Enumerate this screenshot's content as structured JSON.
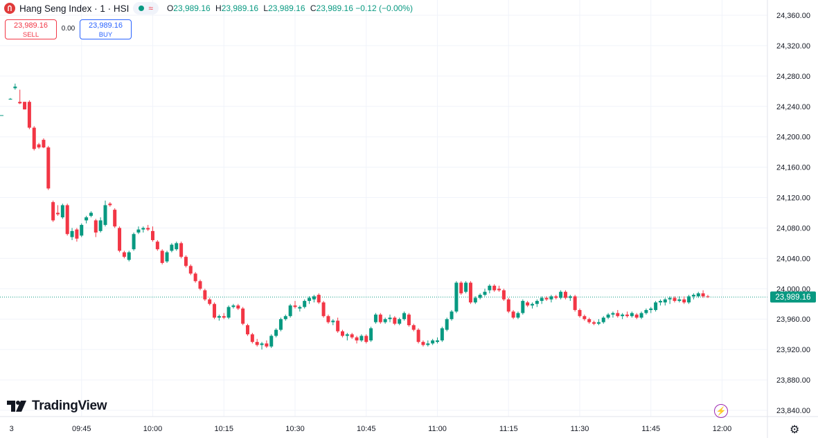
{
  "header": {
    "title": "Hang Seng Index · 1 · HSI",
    "wave_icon": "≈",
    "ohlc": [
      {
        "key": "O",
        "value": "23,989.16"
      },
      {
        "key": "H",
        "value": "23,989.16"
      },
      {
        "key": "L",
        "value": "23,989.16"
      },
      {
        "key": "C",
        "value": "23,989.16"
      }
    ],
    "change": "−0.12 (−0.00%)"
  },
  "trade": {
    "sell_price": "23,989.16",
    "sell_label": "SELL",
    "spread": "0.00",
    "buy_price": "23,989.16",
    "buy_label": "BUY"
  },
  "watermark": "TradingView",
  "icons": [
    "logo-icon",
    "wave-icon",
    "bolt-icon",
    "gear-icon",
    "tradingview-logo-icon"
  ],
  "colors": {
    "up": "#089981",
    "down": "#f23645",
    "grid": "#f0f3fa",
    "price_badge": "#089981"
  },
  "chart_data": {
    "type": "candlestick",
    "symbol": "HSI",
    "interval": "1",
    "last_price": 23989.16,
    "last_price_label": "23,989.16",
    "y_ticks": [
      "23,840.00",
      "23,880.00",
      "23,920.00",
      "23,960.00",
      "24,000.00",
      "24,040.00",
      "24,080.00",
      "24,120.00",
      "24,160.00",
      "24,200.00",
      "24,240.00",
      "24,280.00",
      "24,320.00",
      "24,360.00"
    ],
    "ylim": [
      23822,
      24378
    ],
    "x_ticks": [
      "3",
      "09:45",
      "10:00",
      "10:15",
      "10:30",
      "10:45",
      "11:00",
      "11:15",
      "11:30",
      "11:45",
      "12:00"
    ],
    "x_tick_index": [
      -0.2,
      15,
      30,
      45,
      60,
      75,
      90,
      105,
      120,
      135,
      150
    ],
    "grid": true,
    "candles": [
      {
        "o": 24249,
        "h": 24251,
        "l": 24249,
        "c": 24250
      },
      {
        "o": 24264,
        "h": 24270,
        "l": 24262,
        "c": 24266
      },
      {
        "o": 24246,
        "h": 24262,
        "l": 24243,
        "c": 24244
      },
      {
        "o": 24246,
        "h": 24246,
        "l": 24236,
        "c": 24236
      },
      {
        "o": 24246,
        "h": 24248,
        "l": 24210,
        "c": 24212
      },
      {
        "o": 24212,
        "h": 24214,
        "l": 24182,
        "c": 24184
      },
      {
        "o": 24190,
        "h": 24192,
        "l": 24184,
        "c": 24186
      },
      {
        "o": 24196,
        "h": 24198,
        "l": 24185,
        "c": 24186
      },
      {
        "o": 24186,
        "h": 24188,
        "l": 24130,
        "c": 24132
      },
      {
        "o": 24114,
        "h": 24116,
        "l": 24088,
        "c": 24090
      },
      {
        "o": 24100,
        "h": 24110,
        "l": 24096,
        "c": 24098
      },
      {
        "o": 24094,
        "h": 24112,
        "l": 24092,
        "c": 24110
      },
      {
        "o": 24110,
        "h": 24112,
        "l": 24070,
        "c": 24072
      },
      {
        "o": 24068,
        "h": 24080,
        "l": 24064,
        "c": 24076
      },
      {
        "o": 24078,
        "h": 24080,
        "l": 24062,
        "c": 24066
      },
      {
        "o": 24070,
        "h": 24086,
        "l": 24068,
        "c": 24084
      },
      {
        "o": 24090,
        "h": 24096,
        "l": 24086,
        "c": 24094
      },
      {
        "o": 24096,
        "h": 24102,
        "l": 24094,
        "c": 24100
      },
      {
        "o": 24090,
        "h": 24092,
        "l": 24068,
        "c": 24074
      },
      {
        "o": 24076,
        "h": 24094,
        "l": 24074,
        "c": 24090
      },
      {
        "o": 24084,
        "h": 24116,
        "l": 24082,
        "c": 24110
      },
      {
        "o": 24112,
        "h": 24114,
        "l": 24108,
        "c": 24110
      },
      {
        "o": 24104,
        "h": 24106,
        "l": 24080,
        "c": 24082
      },
      {
        "o": 24080,
        "h": 24082,
        "l": 24048,
        "c": 24050
      },
      {
        "o": 24048,
        "h": 24050,
        "l": 24040,
        "c": 24042
      },
      {
        "o": 24038,
        "h": 24050,
        "l": 24036,
        "c": 24048
      },
      {
        "o": 24052,
        "h": 24074,
        "l": 24050,
        "c": 24072
      },
      {
        "o": 24074,
        "h": 24082,
        "l": 24072,
        "c": 24078
      },
      {
        "o": 24078,
        "h": 24082,
        "l": 24074,
        "c": 24080
      },
      {
        "o": 24080,
        "h": 24084,
        "l": 24076,
        "c": 24078
      },
      {
        "o": 24076,
        "h": 24082,
        "l": 24062,
        "c": 24064
      },
      {
        "o": 24062,
        "h": 24064,
        "l": 24050,
        "c": 24052
      },
      {
        "o": 24050,
        "h": 24052,
        "l": 24032,
        "c": 24034
      },
      {
        "o": 24036,
        "h": 24050,
        "l": 24034,
        "c": 24048
      },
      {
        "o": 24050,
        "h": 24060,
        "l": 24048,
        "c": 24058
      },
      {
        "o": 24052,
        "h": 24062,
        "l": 24050,
        "c": 24060
      },
      {
        "o": 24060,
        "h": 24062,
        "l": 24040,
        "c": 24042
      },
      {
        "o": 24042,
        "h": 24044,
        "l": 24028,
        "c": 24030
      },
      {
        "o": 24030,
        "h": 24032,
        "l": 24018,
        "c": 24020
      },
      {
        "o": 24020,
        "h": 24022,
        "l": 24008,
        "c": 24010
      },
      {
        "o": 24010,
        "h": 24012,
        "l": 23998,
        "c": 24000
      },
      {
        "o": 23998,
        "h": 24000,
        "l": 23984,
        "c": 23986
      },
      {
        "o": 23986,
        "h": 23988,
        "l": 23978,
        "c": 23980
      },
      {
        "o": 23980,
        "h": 23982,
        "l": 23960,
        "c": 23962
      },
      {
        "o": 23962,
        "h": 23966,
        "l": 23958,
        "c": 23964
      },
      {
        "o": 23964,
        "h": 23968,
        "l": 23960,
        "c": 23962
      },
      {
        "o": 23962,
        "h": 23978,
        "l": 23960,
        "c": 23976
      },
      {
        "o": 23976,
        "h": 23980,
        "l": 23974,
        "c": 23978
      },
      {
        "o": 23978,
        "h": 23980,
        "l": 23972,
        "c": 23974
      },
      {
        "o": 23974,
        "h": 23976,
        "l": 23952,
        "c": 23954
      },
      {
        "o": 23952,
        "h": 23954,
        "l": 23938,
        "c": 23940
      },
      {
        "o": 23940,
        "h": 23942,
        "l": 23928,
        "c": 23930
      },
      {
        "o": 23930,
        "h": 23934,
        "l": 23924,
        "c": 23926
      },
      {
        "o": 23926,
        "h": 23930,
        "l": 23920,
        "c": 23928
      },
      {
        "o": 23928,
        "h": 23932,
        "l": 23922,
        "c": 23924
      },
      {
        "o": 23924,
        "h": 23940,
        "l": 23922,
        "c": 23938
      },
      {
        "o": 23938,
        "h": 23948,
        "l": 23936,
        "c": 23946
      },
      {
        "o": 23946,
        "h": 23962,
        "l": 23944,
        "c": 23960
      },
      {
        "o": 23960,
        "h": 23966,
        "l": 23958,
        "c": 23964
      },
      {
        "o": 23964,
        "h": 23980,
        "l": 23962,
        "c": 23978
      },
      {
        "o": 23978,
        "h": 23984,
        "l": 23974,
        "c": 23976
      },
      {
        "o": 23974,
        "h": 23978,
        "l": 23970,
        "c": 23976
      },
      {
        "o": 23976,
        "h": 23986,
        "l": 23974,
        "c": 23984
      },
      {
        "o": 23984,
        "h": 23990,
        "l": 23980,
        "c": 23988
      },
      {
        "o": 23986,
        "h": 23992,
        "l": 23982,
        "c": 23990
      },
      {
        "o": 23992,
        "h": 23994,
        "l": 23980,
        "c": 23982
      },
      {
        "o": 23982,
        "h": 23984,
        "l": 23962,
        "c": 23964
      },
      {
        "o": 23964,
        "h": 23966,
        "l": 23954,
        "c": 23956
      },
      {
        "o": 23956,
        "h": 23960,
        "l": 23952,
        "c": 23958
      },
      {
        "o": 23958,
        "h": 23962,
        "l": 23942,
        "c": 23944
      },
      {
        "o": 23944,
        "h": 23946,
        "l": 23936,
        "c": 23938
      },
      {
        "o": 23938,
        "h": 23942,
        "l": 23932,
        "c": 23940
      },
      {
        "o": 23940,
        "h": 23942,
        "l": 23934,
        "c": 23936
      },
      {
        "o": 23936,
        "h": 23938,
        "l": 23928,
        "c": 23932
      },
      {
        "o": 23932,
        "h": 23940,
        "l": 23930,
        "c": 23938
      },
      {
        "o": 23938,
        "h": 23940,
        "l": 23928,
        "c": 23930
      },
      {
        "o": 23932,
        "h": 23950,
        "l": 23930,
        "c": 23948
      },
      {
        "o": 23956,
        "h": 23968,
        "l": 23954,
        "c": 23966
      },
      {
        "o": 23966,
        "h": 23968,
        "l": 23954,
        "c": 23956
      },
      {
        "o": 23956,
        "h": 23962,
        "l": 23954,
        "c": 23960
      },
      {
        "o": 23960,
        "h": 23966,
        "l": 23956,
        "c": 23962
      },
      {
        "o": 23962,
        "h": 23964,
        "l": 23952,
        "c": 23954
      },
      {
        "o": 23954,
        "h": 23962,
        "l": 23952,
        "c": 23960
      },
      {
        "o": 23960,
        "h": 23970,
        "l": 23958,
        "c": 23968
      },
      {
        "o": 23966,
        "h": 23968,
        "l": 23950,
        "c": 23952
      },
      {
        "o": 23952,
        "h": 23954,
        "l": 23944,
        "c": 23946
      },
      {
        "o": 23946,
        "h": 23948,
        "l": 23928,
        "c": 23930
      },
      {
        "o": 23930,
        "h": 23932,
        "l": 23924,
        "c": 23926
      },
      {
        "o": 23926,
        "h": 23932,
        "l": 23924,
        "c": 23928
      },
      {
        "o": 23928,
        "h": 23934,
        "l": 23926,
        "c": 23932
      },
      {
        "o": 23930,
        "h": 23936,
        "l": 23928,
        "c": 23932
      },
      {
        "o": 23932,
        "h": 23950,
        "l": 23930,
        "c": 23948
      },
      {
        "o": 23946,
        "h": 23962,
        "l": 23944,
        "c": 23960
      },
      {
        "o": 23960,
        "h": 23972,
        "l": 23958,
        "c": 23970
      },
      {
        "o": 23970,
        "h": 24010,
        "l": 23968,
        "c": 24008
      },
      {
        "o": 24008,
        "h": 24010,
        "l": 23992,
        "c": 23994
      },
      {
        "o": 23996,
        "h": 24010,
        "l": 23994,
        "c": 24008
      },
      {
        "o": 24008,
        "h": 24010,
        "l": 23980,
        "c": 23982
      },
      {
        "o": 23982,
        "h": 23990,
        "l": 23980,
        "c": 23988
      },
      {
        "o": 23988,
        "h": 23994,
        "l": 23986,
        "c": 23992
      },
      {
        "o": 23992,
        "h": 24000,
        "l": 23990,
        "c": 23996
      },
      {
        "o": 23998,
        "h": 24006,
        "l": 23994,
        "c": 24004
      },
      {
        "o": 24004,
        "h": 24006,
        "l": 23996,
        "c": 23998
      },
      {
        "o": 24000,
        "h": 24004,
        "l": 23996,
        "c": 23998
      },
      {
        "o": 23998,
        "h": 24000,
        "l": 23984,
        "c": 23986
      },
      {
        "o": 23986,
        "h": 23988,
        "l": 23968,
        "c": 23970
      },
      {
        "o": 23970,
        "h": 23972,
        "l": 23960,
        "c": 23962
      },
      {
        "o": 23962,
        "h": 23970,
        "l": 23960,
        "c": 23968
      },
      {
        "o": 23968,
        "h": 23986,
        "l": 23966,
        "c": 23984
      },
      {
        "o": 23982,
        "h": 23984,
        "l": 23976,
        "c": 23978
      },
      {
        "o": 23978,
        "h": 23982,
        "l": 23974,
        "c": 23980
      },
      {
        "o": 23980,
        "h": 23986,
        "l": 23976,
        "c": 23984
      },
      {
        "o": 23984,
        "h": 23990,
        "l": 23980,
        "c": 23988
      },
      {
        "o": 23988,
        "h": 23990,
        "l": 23984,
        "c": 23986
      },
      {
        "o": 23986,
        "h": 23992,
        "l": 23982,
        "c": 23990
      },
      {
        "o": 23990,
        "h": 23992,
        "l": 23986,
        "c": 23988
      },
      {
        "o": 23988,
        "h": 23998,
        "l": 23986,
        "c": 23996
      },
      {
        "o": 23996,
        "h": 23998,
        "l": 23986,
        "c": 23988
      },
      {
        "o": 23988,
        "h": 23992,
        "l": 23984,
        "c": 23990
      },
      {
        "o": 23990,
        "h": 23992,
        "l": 23970,
        "c": 23972
      },
      {
        "o": 23972,
        "h": 23974,
        "l": 23962,
        "c": 23964
      },
      {
        "o": 23964,
        "h": 23966,
        "l": 23958,
        "c": 23960
      },
      {
        "o": 23960,
        "h": 23962,
        "l": 23954,
        "c": 23956
      },
      {
        "o": 23956,
        "h": 23958,
        "l": 23952,
        "c": 23954
      },
      {
        "o": 23954,
        "h": 23960,
        "l": 23952,
        "c": 23956
      },
      {
        "o": 23956,
        "h": 23964,
        "l": 23954,
        "c": 23962
      },
      {
        "o": 23962,
        "h": 23968,
        "l": 23960,
        "c": 23966
      },
      {
        "o": 23966,
        "h": 23970,
        "l": 23962,
        "c": 23968
      },
      {
        "o": 23968,
        "h": 23972,
        "l": 23962,
        "c": 23964
      },
      {
        "o": 23964,
        "h": 23968,
        "l": 23960,
        "c": 23966
      },
      {
        "o": 23966,
        "h": 23970,
        "l": 23962,
        "c": 23964
      },
      {
        "o": 23964,
        "h": 23970,
        "l": 23962,
        "c": 23968
      },
      {
        "o": 23966,
        "h": 23968,
        "l": 23960,
        "c": 23962
      },
      {
        "o": 23962,
        "h": 23970,
        "l": 23960,
        "c": 23968
      },
      {
        "o": 23968,
        "h": 23974,
        "l": 23966,
        "c": 23972
      },
      {
        "o": 23972,
        "h": 23976,
        "l": 23968,
        "c": 23974
      },
      {
        "o": 23972,
        "h": 23984,
        "l": 23970,
        "c": 23982
      },
      {
        "o": 23982,
        "h": 23986,
        "l": 23978,
        "c": 23984
      },
      {
        "o": 23982,
        "h": 23988,
        "l": 23978,
        "c": 23986
      },
      {
        "o": 23986,
        "h": 23990,
        "l": 23980,
        "c": 23988
      },
      {
        "o": 23988,
        "h": 23990,
        "l": 23982,
        "c": 23984
      },
      {
        "o": 23984,
        "h": 23990,
        "l": 23982,
        "c": 23986
      },
      {
        "o": 23986,
        "h": 23990,
        "l": 23980,
        "c": 23982
      },
      {
        "o": 23982,
        "h": 23992,
        "l": 23980,
        "c": 23990
      },
      {
        "o": 23990,
        "h": 23994,
        "l": 23986,
        "c": 23992
      },
      {
        "o": 23990,
        "h": 23996,
        "l": 23988,
        "c": 23994
      },
      {
        "o": 23994,
        "h": 23998,
        "l": 23988,
        "c": 23990
      },
      {
        "o": 23990,
        "h": 23992,
        "l": 23988,
        "c": 23989
      }
    ]
  }
}
